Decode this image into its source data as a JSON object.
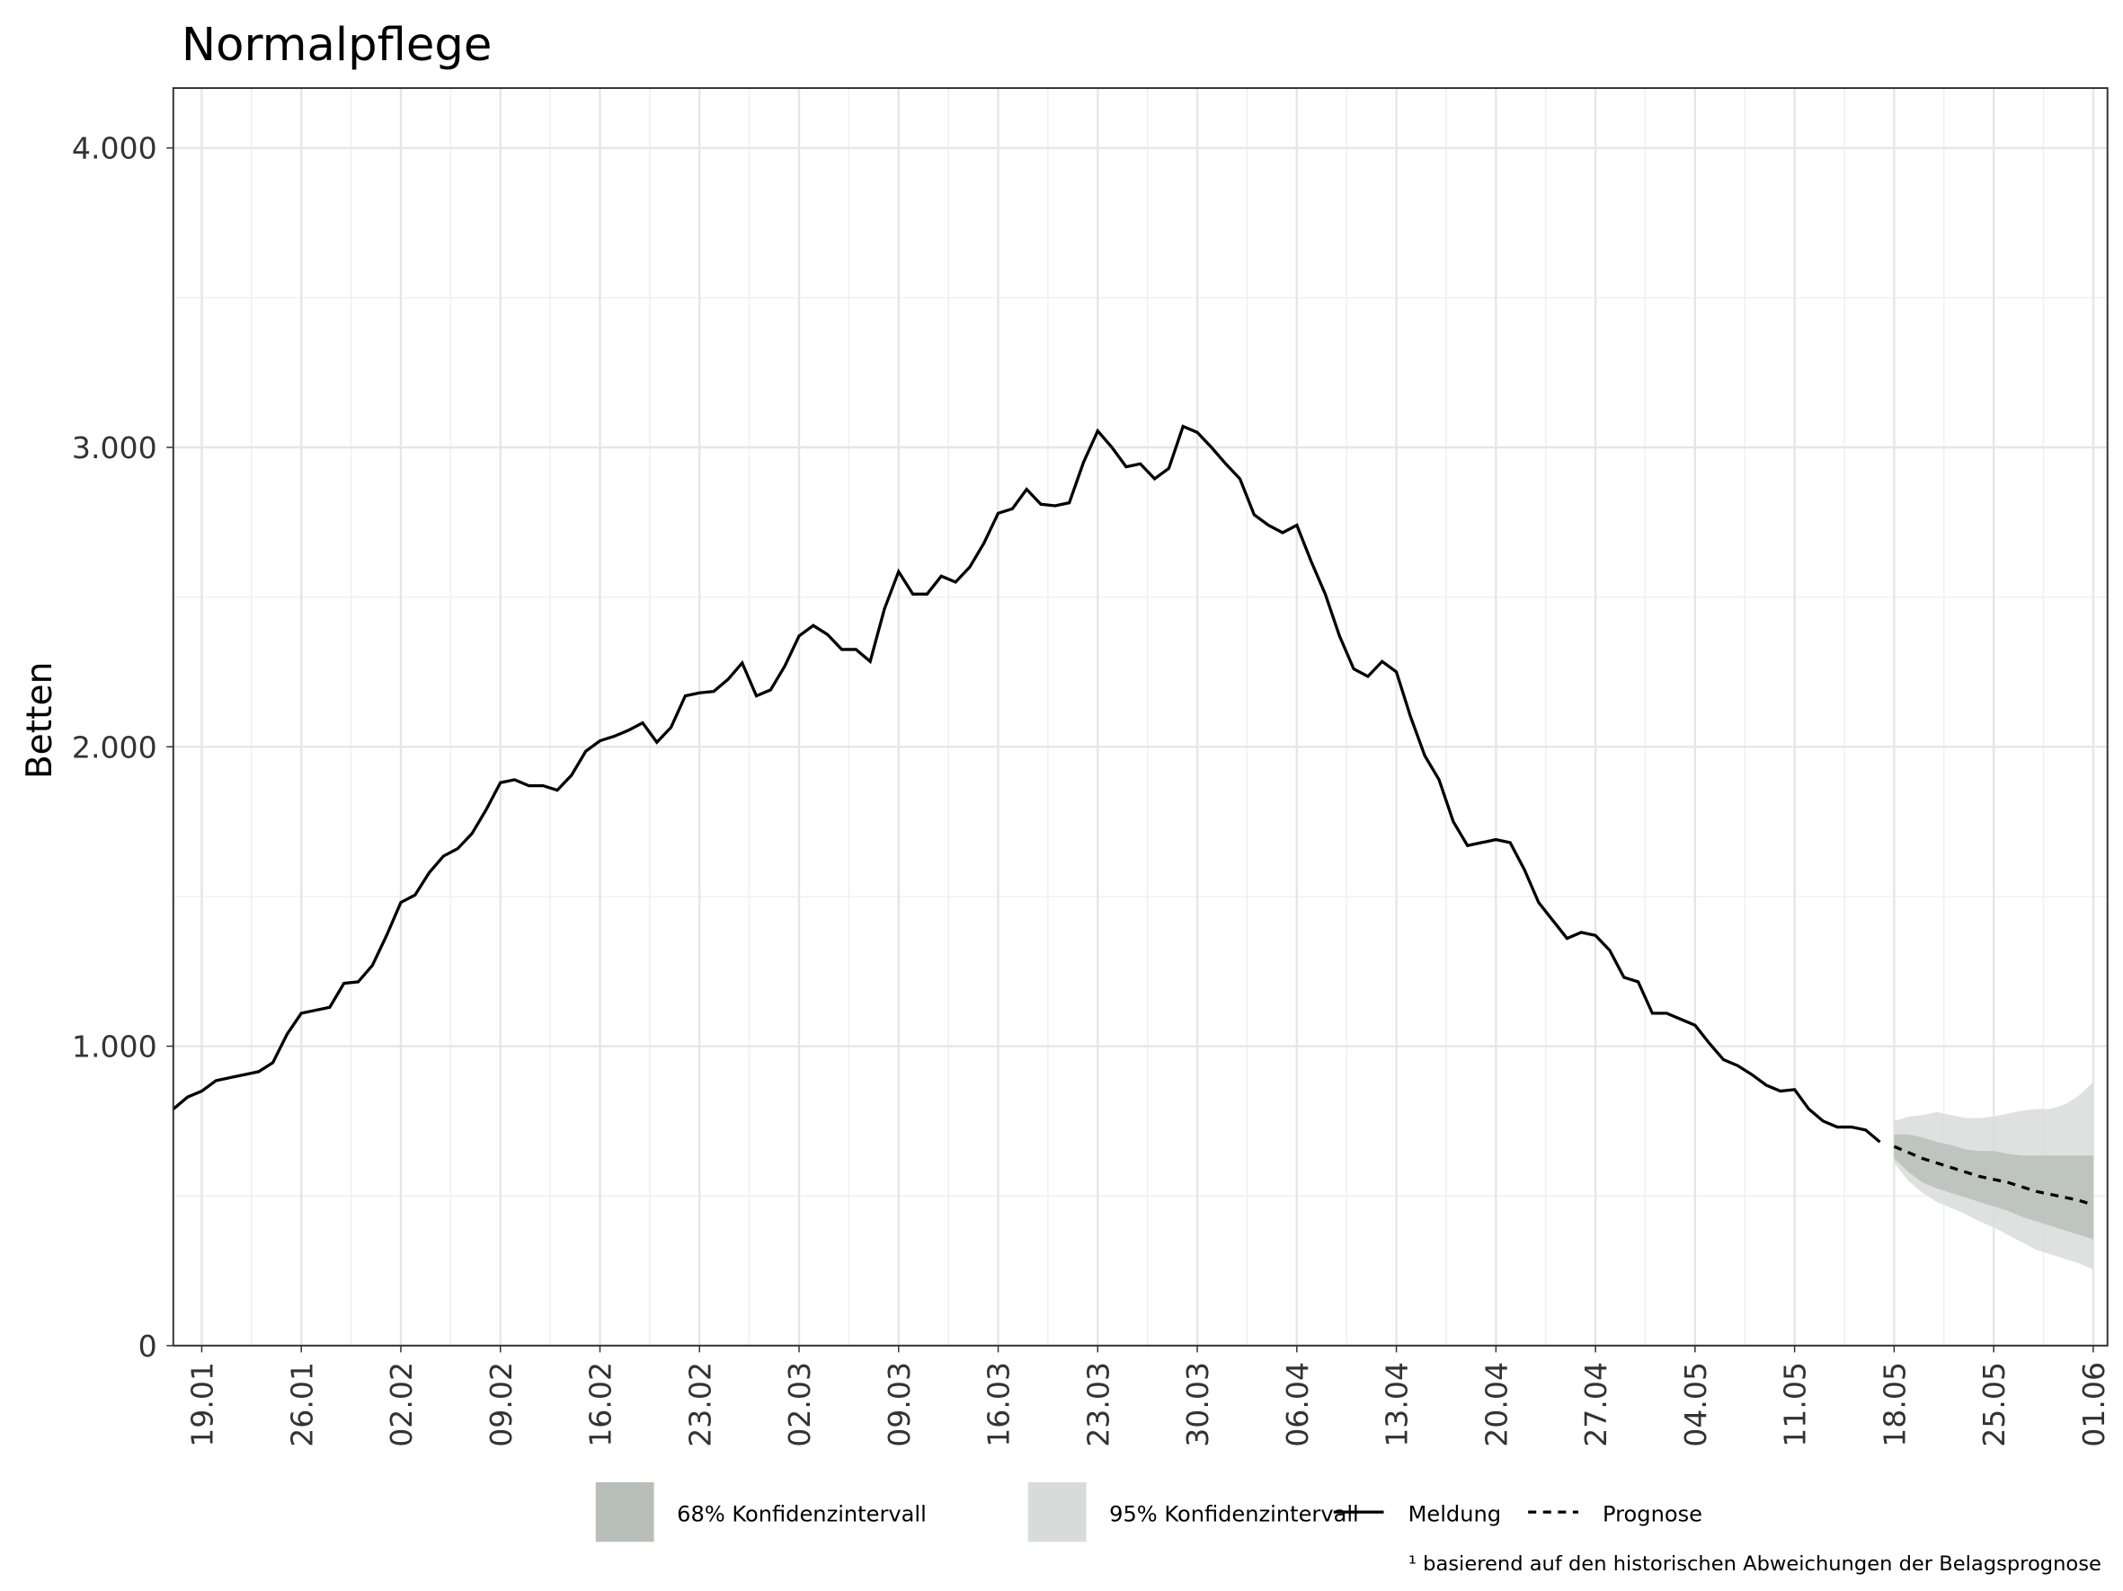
{
  "chart_data": {
    "type": "line",
    "title": "Normalpflege",
    "y_label": "Betten",
    "footnote": "¹ basierend auf den historischen Abweichungen der Belagsprognose",
    "xlim": [
      "17.01",
      "02.06"
    ],
    "xticks": [
      "19.01",
      "26.01",
      "02.02",
      "09.02",
      "16.02",
      "23.02",
      "02.03",
      "09.03",
      "16.03",
      "23.03",
      "30.03",
      "06.04",
      "13.04",
      "20.04",
      "27.04",
      "04.05",
      "11.05",
      "18.05",
      "25.05",
      "01.06"
    ],
    "ylim": [
      0,
      4200
    ],
    "yticks": [
      0,
      {
        "value": 1000,
        "label": "1.000"
      },
      {
        "value": 2000,
        "label": "2.000"
      },
      {
        "value": 3000,
        "label": "3.000"
      },
      {
        "value": 4000,
        "label": "4.000"
      }
    ],
    "grid": true,
    "series": [
      {
        "name": "Meldung",
        "color": "#000000",
        "line_style": "solid",
        "x": [
          "17.01",
          "18.01",
          "19.01",
          "20.01",
          "21.01",
          "22.01",
          "23.01",
          "24.01",
          "25.01",
          "26.01",
          "27.01",
          "28.01",
          "29.01",
          "30.01",
          "31.01",
          "01.02",
          "02.02",
          "03.02",
          "04.02",
          "05.02",
          "06.02",
          "07.02",
          "08.02",
          "09.02",
          "10.02",
          "11.02",
          "12.02",
          "13.02",
          "14.02",
          "15.02",
          "16.02",
          "17.02",
          "18.02",
          "19.02",
          "20.02",
          "21.02",
          "22.02",
          "23.02",
          "24.02",
          "25.02",
          "26.02",
          "27.02",
          "28.02",
          "01.03",
          "02.03",
          "03.03",
          "04.03",
          "05.03",
          "06.03",
          "07.03",
          "08.03",
          "09.03",
          "10.03",
          "11.03",
          "12.03",
          "13.03",
          "14.03",
          "15.03",
          "16.03",
          "17.03",
          "18.03",
          "19.03",
          "20.03",
          "21.03",
          "22.03",
          "23.03",
          "24.03",
          "25.03",
          "26.03",
          "27.03",
          "28.03",
          "29.03",
          "30.03",
          "31.03",
          "01.04",
          "02.04",
          "03.04",
          "04.04",
          "05.04",
          "06.04",
          "07.04",
          "08.04",
          "09.04",
          "10.04",
          "11.04",
          "12.04",
          "13.04",
          "14.04",
          "15.04",
          "16.04",
          "17.04",
          "18.04",
          "19.04",
          "20.04",
          "21.04",
          "22.04",
          "23.04",
          "24.04",
          "25.04",
          "26.04",
          "27.04",
          "28.04",
          "29.04",
          "30.04",
          "01.05",
          "02.05",
          "03.05",
          "04.05",
          "05.05",
          "06.05",
          "07.05",
          "08.05",
          "09.05",
          "10.05",
          "11.05",
          "12.05",
          "13.05",
          "14.05",
          "15.05",
          "16.05",
          "17.05"
        ],
        "values": [
          790,
          830,
          850,
          885,
          895,
          905,
          915,
          945,
          1040,
          1110,
          1120,
          1130,
          1210,
          1215,
          1270,
          1370,
          1480,
          1505,
          1580,
          1635,
          1660,
          1710,
          1790,
          1880,
          1890,
          1870,
          1870,
          1855,
          1905,
          1985,
          2020,
          2035,
          2055,
          2080,
          2015,
          2065,
          2170,
          2180,
          2185,
          2225,
          2280,
          2170,
          2190,
          2270,
          2370,
          2405,
          2375,
          2325,
          2325,
          2285,
          2460,
          2585,
          2510,
          2510,
          2570,
          2550,
          2600,
          2680,
          2780,
          2795,
          2860,
          2810,
          2805,
          2815,
          2950,
          3055,
          3000,
          2935,
          2945,
          2895,
          2930,
          3070,
          3050,
          3000,
          2945,
          2895,
          2775,
          2740,
          2715,
          2740,
          2620,
          2510,
          2370,
          2260,
          2235,
          2285,
          2250,
          2100,
          1970,
          1890,
          1750,
          1670,
          1680,
          1690,
          1680,
          1590,
          1480,
          1420,
          1360,
          1380,
          1370,
          1320,
          1230,
          1215,
          1110,
          1110,
          1090,
          1070,
          1010,
          955,
          935,
          905,
          870,
          850,
          855,
          790,
          750,
          730,
          730,
          720,
          680
        ]
      },
      {
        "name": "Prognose",
        "color": "#000000",
        "line_style": "dashed",
        "x": [
          "18.05",
          "19.05",
          "20.05",
          "21.05",
          "22.05",
          "23.05",
          "24.05",
          "25.05",
          "26.05",
          "27.05",
          "28.05",
          "29.05",
          "30.05",
          "31.05",
          "01.06"
        ],
        "values": [
          665,
          645,
          625,
          610,
          595,
          580,
          565,
          555,
          545,
          530,
          515,
          505,
          495,
          485,
          470
        ]
      }
    ],
    "bands": [
      {
        "name": "95% Konfidenzintervall",
        "color": "#d9dbda",
        "x": [
          "18.05",
          "19.05",
          "20.05",
          "21.05",
          "22.05",
          "23.05",
          "24.05",
          "25.05",
          "26.05",
          "27.05",
          "28.05",
          "29.05",
          "30.05",
          "31.05",
          "01.06"
        ],
        "lower": [
          610,
          550,
          510,
          480,
          460,
          440,
          415,
          395,
          370,
          345,
          320,
          305,
          290,
          275,
          255
        ],
        "upper": [
          750,
          765,
          770,
          780,
          770,
          760,
          760,
          765,
          775,
          785,
          790,
          790,
          805,
          835,
          880
        ]
      },
      {
        "name": "68% Konfidenzintervall",
        "color": "#b8beba",
        "x": [
          "18.05",
          "19.05",
          "20.05",
          "21.05",
          "22.05",
          "23.05",
          "24.05",
          "25.05",
          "26.05",
          "27.05",
          "28.05",
          "29.05",
          "30.05",
          "31.05",
          "01.06"
        ],
        "lower": [
          625,
          580,
          545,
          525,
          510,
          495,
          480,
          465,
          450,
          430,
          415,
          400,
          385,
          370,
          355
        ],
        "upper": [
          705,
          705,
          695,
          680,
          670,
          655,
          650,
          650,
          640,
          635,
          635,
          635,
          635,
          635,
          635
        ]
      }
    ]
  }
}
